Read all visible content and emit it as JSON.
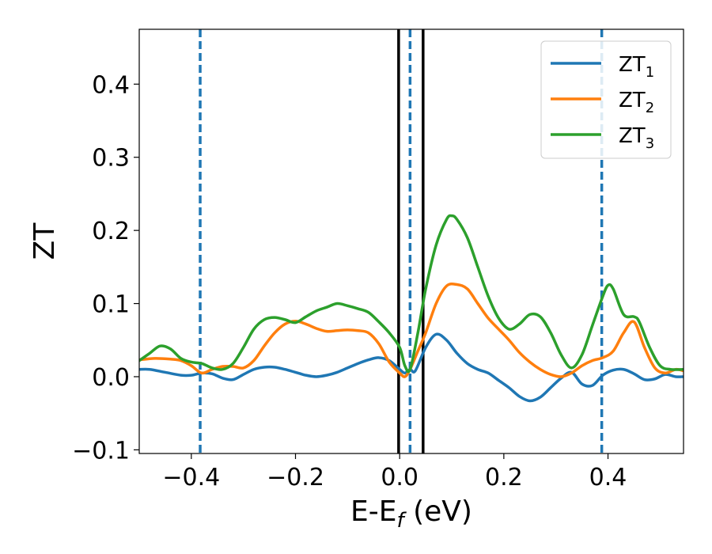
{
  "chart_data": {
    "type": "line",
    "xlabel": {
      "main": "E-E",
      "sub": "f",
      "suffix": " (eV)"
    },
    "ylabel": "ZT",
    "xlim": [
      -0.5,
      0.545
    ],
    "ylim": [
      -0.105,
      0.475
    ],
    "xticks": [
      -0.4,
      -0.2,
      0.0,
      0.2,
      0.4
    ],
    "xtick_labels": [
      "−0.4",
      "−0.2",
      "0.0",
      "0.2",
      "0.4"
    ],
    "yticks": [
      -0.1,
      0.0,
      0.1,
      0.2,
      0.3,
      0.4
    ],
    "ytick_labels": [
      "−0.1",
      "0.0",
      "0.1",
      "0.2",
      "0.3",
      "0.4"
    ],
    "grid": false,
    "legend_position": "top-right",
    "series": [
      {
        "name": "ZT",
        "name_sub": "1",
        "color": "#1f77b4",
        "x": [
          -0.5,
          -0.48,
          -0.45,
          -0.42,
          -0.4,
          -0.38,
          -0.36,
          -0.34,
          -0.32,
          -0.3,
          -0.28,
          -0.26,
          -0.24,
          -0.22,
          -0.2,
          -0.18,
          -0.16,
          -0.14,
          -0.12,
          -0.1,
          -0.08,
          -0.06,
          -0.04,
          -0.02,
          0.0,
          0.01,
          0.02,
          0.03,
          0.05,
          0.07,
          0.09,
          0.11,
          0.13,
          0.15,
          0.17,
          0.19,
          0.21,
          0.23,
          0.25,
          0.27,
          0.29,
          0.31,
          0.33,
          0.35,
          0.37,
          0.39,
          0.41,
          0.43,
          0.45,
          0.47,
          0.49,
          0.51,
          0.53,
          0.545
        ],
        "y": [
          0.01,
          0.01,
          0.006,
          0.002,
          0.002,
          0.005,
          0.004,
          -0.002,
          -0.004,
          0.003,
          0.01,
          0.013,
          0.013,
          0.01,
          0.006,
          0.002,
          0.0,
          0.002,
          0.006,
          0.012,
          0.018,
          0.023,
          0.026,
          0.022,
          0.01,
          0.005,
          0.01,
          0.008,
          0.04,
          0.058,
          0.05,
          0.032,
          0.018,
          0.01,
          0.005,
          -0.005,
          -0.015,
          -0.027,
          -0.033,
          -0.028,
          -0.015,
          -0.002,
          0.006,
          -0.01,
          -0.012,
          0.002,
          0.009,
          0.01,
          0.004,
          -0.004,
          -0.003,
          0.003,
          0.0,
          0.0
        ]
      },
      {
        "name": "ZT",
        "name_sub": "2",
        "color": "#ff7f0e",
        "x": [
          -0.5,
          -0.47,
          -0.44,
          -0.42,
          -0.4,
          -0.38,
          -0.36,
          -0.34,
          -0.32,
          -0.3,
          -0.28,
          -0.26,
          -0.24,
          -0.22,
          -0.2,
          -0.18,
          -0.16,
          -0.14,
          -0.12,
          -0.1,
          -0.08,
          -0.06,
          -0.04,
          -0.02,
          0.0,
          0.01,
          0.02,
          0.035,
          0.05,
          0.07,
          0.09,
          0.11,
          0.13,
          0.15,
          0.17,
          0.19,
          0.21,
          0.23,
          0.25,
          0.27,
          0.29,
          0.31,
          0.33,
          0.35,
          0.37,
          0.39,
          0.41,
          0.43,
          0.45,
          0.47,
          0.49,
          0.51,
          0.53,
          0.545
        ],
        "y": [
          0.023,
          0.025,
          0.024,
          0.022,
          0.015,
          0.005,
          0.01,
          0.014,
          0.014,
          0.012,
          0.022,
          0.042,
          0.06,
          0.072,
          0.076,
          0.072,
          0.066,
          0.062,
          0.063,
          0.064,
          0.063,
          0.06,
          0.045,
          0.02,
          0.005,
          0.0,
          0.01,
          0.035,
          0.06,
          0.1,
          0.124,
          0.126,
          0.12,
          0.1,
          0.08,
          0.065,
          0.05,
          0.033,
          0.02,
          0.01,
          0.003,
          0.0,
          0.005,
          0.015,
          0.022,
          0.026,
          0.035,
          0.06,
          0.075,
          0.04,
          0.012,
          0.005,
          0.01,
          0.008
        ]
      },
      {
        "name": "ZT",
        "name_sub": "3",
        "color": "#2ca02c",
        "x": [
          -0.5,
          -0.48,
          -0.46,
          -0.44,
          -0.42,
          -0.4,
          -0.38,
          -0.36,
          -0.34,
          -0.32,
          -0.3,
          -0.28,
          -0.26,
          -0.24,
          -0.22,
          -0.2,
          -0.18,
          -0.16,
          -0.14,
          -0.12,
          -0.1,
          -0.08,
          -0.06,
          -0.04,
          -0.02,
          0.0,
          0.01,
          0.02,
          0.035,
          0.05,
          0.07,
          0.09,
          0.1,
          0.11,
          0.13,
          0.15,
          0.17,
          0.19,
          0.21,
          0.23,
          0.25,
          0.27,
          0.29,
          0.31,
          0.33,
          0.35,
          0.37,
          0.39,
          0.4,
          0.41,
          0.43,
          0.45,
          0.46,
          0.48,
          0.5,
          0.52,
          0.545
        ],
        "y": [
          0.022,
          0.032,
          0.042,
          0.038,
          0.025,
          0.02,
          0.018,
          0.012,
          0.01,
          0.018,
          0.04,
          0.065,
          0.078,
          0.081,
          0.078,
          0.074,
          0.082,
          0.09,
          0.095,
          0.1,
          0.097,
          0.093,
          0.088,
          0.075,
          0.06,
          0.04,
          0.015,
          0.01,
          0.06,
          0.12,
          0.18,
          0.215,
          0.22,
          0.215,
          0.19,
          0.15,
          0.11,
          0.08,
          0.065,
          0.072,
          0.085,
          0.082,
          0.06,
          0.03,
          0.012,
          0.03,
          0.07,
          0.11,
          0.125,
          0.12,
          0.085,
          0.082,
          0.075,
          0.04,
          0.015,
          0.01,
          0.01
        ]
      }
    ],
    "vlines": [
      {
        "x": -0.383,
        "style": "dashed",
        "color": "#1f77b4"
      },
      {
        "x": 0.02,
        "style": "dashed",
        "color": "#1f77b4"
      },
      {
        "x": 0.388,
        "style": "dashed",
        "color": "#1f77b4"
      },
      {
        "x": -0.002,
        "style": "solid",
        "color": "#000000"
      },
      {
        "x": 0.045,
        "style": "solid",
        "color": "#000000"
      }
    ]
  }
}
